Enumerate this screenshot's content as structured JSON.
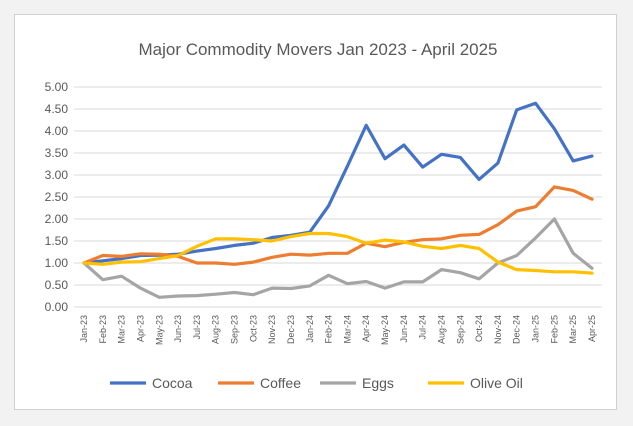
{
  "chart_data": {
    "type": "line",
    "title": "Major Commodity Movers Jan 2023 - April 2025",
    "xlabel": "",
    "ylabel": "",
    "ylim": [
      0,
      5
    ],
    "yticks": [
      "0.00",
      "0.50",
      "1.00",
      "1.50",
      "2.00",
      "2.50",
      "3.00",
      "3.50",
      "4.00",
      "4.50",
      "5.00"
    ],
    "grid": true,
    "legend_position": "bottom",
    "categories": [
      "Jan-23",
      "Feb-23",
      "Mar-23",
      "Apr-23",
      "May-23",
      "Jun-23",
      "Jul-23",
      "Aug-23",
      "Sep-23",
      "Oct-23",
      "Nov-23",
      "Dec-23",
      "Jan-24",
      "Feb-24",
      "Mar-24",
      "Apr-24",
      "May-24",
      "Jun-24",
      "Jul-24",
      "Aug-24",
      "Sep-24",
      "Oct-24",
      "Nov-24",
      "Dec-24",
      "Jan-25",
      "Feb-25",
      "Mar-25",
      "Apr-25"
    ],
    "series": [
      {
        "name": "Cocoa",
        "color": "#4472c4",
        "values": [
          1.0,
          1.05,
          1.1,
          1.17,
          1.18,
          1.2,
          1.27,
          1.33,
          1.4,
          1.45,
          1.58,
          1.63,
          1.7,
          2.3,
          3.2,
          4.13,
          3.37,
          3.68,
          3.18,
          3.47,
          3.4,
          2.9,
          3.27,
          4.48,
          4.63,
          4.05,
          3.32,
          3.43
        ]
      },
      {
        "name": "Coffee",
        "color": "#ed7d31",
        "values": [
          1.0,
          1.17,
          1.15,
          1.21,
          1.2,
          1.15,
          1.0,
          1.0,
          0.97,
          1.02,
          1.13,
          1.2,
          1.18,
          1.22,
          1.22,
          1.45,
          1.37,
          1.47,
          1.53,
          1.55,
          1.63,
          1.65,
          1.87,
          2.18,
          2.28,
          2.73,
          2.65,
          2.45
        ]
      },
      {
        "name": "Eggs",
        "color": "#a5a5a5",
        "values": [
          1.0,
          0.62,
          0.7,
          0.43,
          0.22,
          0.25,
          0.26,
          0.29,
          0.33,
          0.28,
          0.43,
          0.42,
          0.48,
          0.72,
          0.53,
          0.58,
          0.43,
          0.57,
          0.57,
          0.85,
          0.78,
          0.64,
          1.0,
          1.17,
          1.57,
          2.0,
          1.22,
          0.88
        ]
      },
      {
        "name": "Olive Oil",
        "color": "#ffc000",
        "values": [
          1.0,
          0.97,
          1.02,
          1.03,
          1.1,
          1.17,
          1.38,
          1.55,
          1.55,
          1.53,
          1.5,
          1.6,
          1.67,
          1.67,
          1.6,
          1.45,
          1.52,
          1.48,
          1.38,
          1.33,
          1.4,
          1.33,
          1.02,
          0.85,
          0.83,
          0.8,
          0.8,
          0.77
        ]
      }
    ]
  }
}
